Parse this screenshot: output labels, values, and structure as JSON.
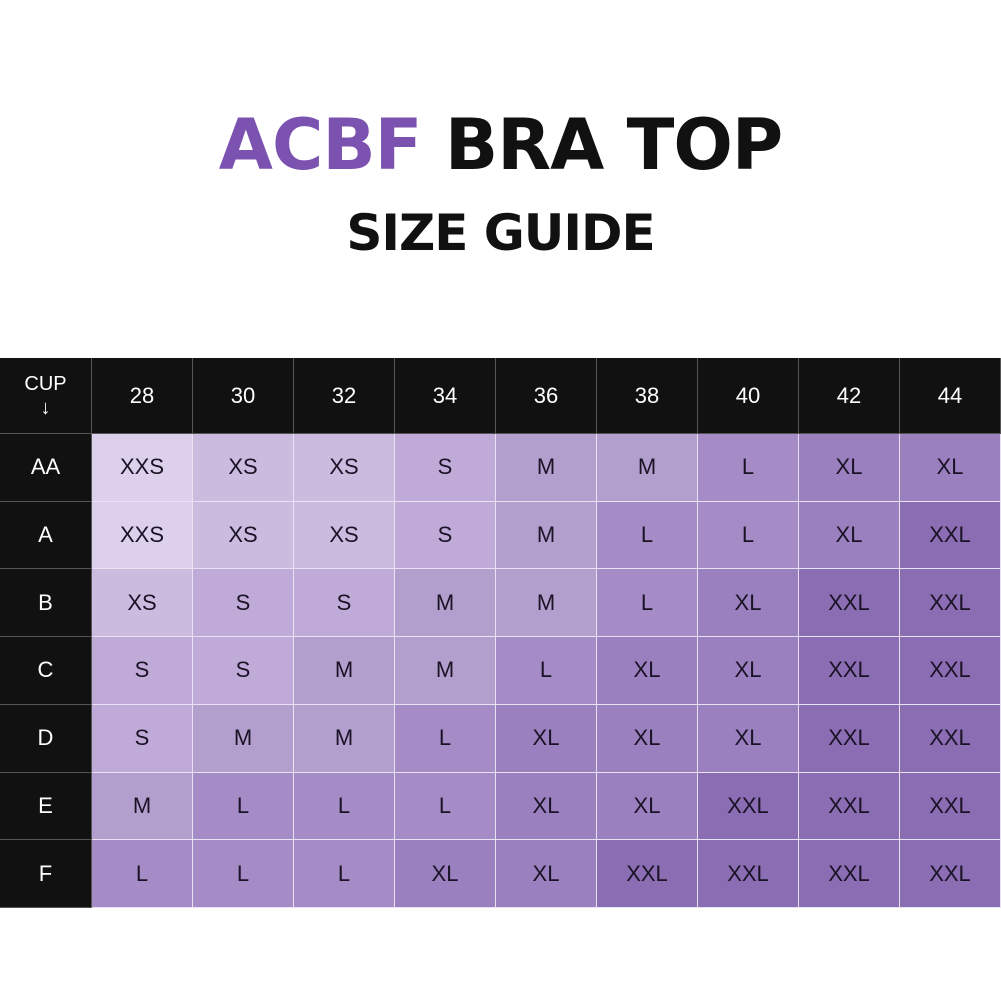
{
  "title": {
    "brand": "ACBF",
    "product": "BRA TOP",
    "subtitle": "SIZE GUIDE"
  },
  "table": {
    "corner_label": "CUP",
    "corner_arrow": "↓",
    "band_sizes": [
      "28",
      "30",
      "32",
      "34",
      "36",
      "38",
      "40",
      "42",
      "44"
    ],
    "rows": [
      {
        "cup": "AA",
        "sizes": [
          "XXS",
          "XS",
          "XS",
          "S",
          "M",
          "M",
          "L",
          "XL",
          "XL"
        ]
      },
      {
        "cup": "A",
        "sizes": [
          "XXS",
          "XS",
          "XS",
          "S",
          "M",
          "L",
          "L",
          "XL",
          "XXL"
        ]
      },
      {
        "cup": "B",
        "sizes": [
          "XS",
          "S",
          "S",
          "M",
          "M",
          "L",
          "XL",
          "XXL",
          "XXL"
        ]
      },
      {
        "cup": "C",
        "sizes": [
          "S",
          "S",
          "M",
          "M",
          "L",
          "XL",
          "XL",
          "XXL",
          "XXL"
        ]
      },
      {
        "cup": "D",
        "sizes": [
          "S",
          "M",
          "M",
          "L",
          "XL",
          "XL",
          "XL",
          "XXL",
          "XXL"
        ]
      },
      {
        "cup": "E",
        "sizes": [
          "M",
          "L",
          "L",
          "L",
          "XL",
          "XL",
          "XXL",
          "XXL",
          "XXL"
        ]
      },
      {
        "cup": "F",
        "sizes": [
          "L",
          "L",
          "L",
          "XL",
          "XL",
          "XXL",
          "XXL",
          "XXL",
          "XXL"
        ]
      }
    ]
  },
  "colors": {
    "brand": "#7b52b0",
    "header_bg": "#111111",
    "XXS": "#ddd0ec",
    "XS": "#cbbbdf",
    "S": "#c0abd8",
    "M": "#b39fcd",
    "L": "#a68cc6",
    "XL": "#9b80bf",
    "XXL": "#8b6db3"
  }
}
